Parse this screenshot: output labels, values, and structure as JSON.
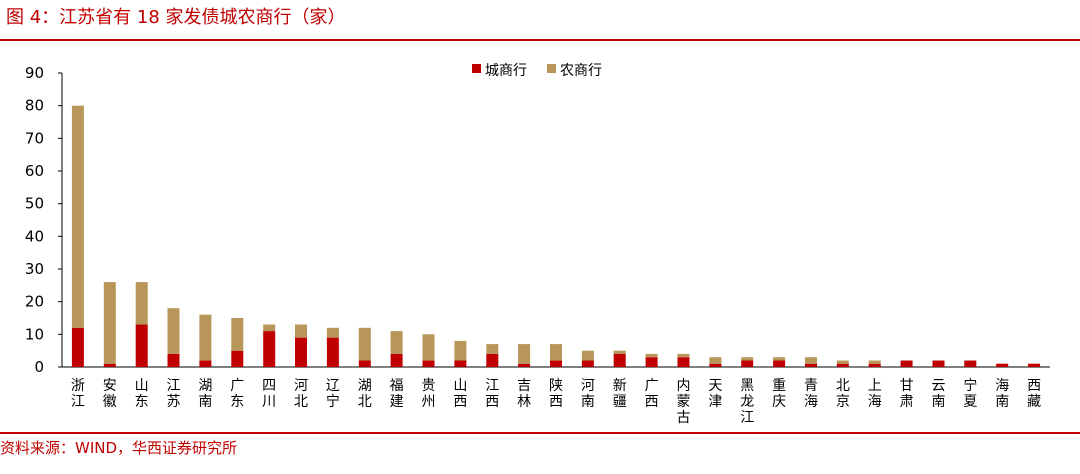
{
  "header": {
    "title": "图 4：江苏省有 18 家发债城农商行（家）"
  },
  "footer": {
    "source": "资料来源：WIND，华西证券研究所"
  },
  "colors": {
    "city_bank": "#c00000",
    "rural_bank": "#b8965a",
    "accent": "#c00000"
  },
  "chart_data": {
    "type": "bar",
    "stacked": true,
    "categories": [
      "浙江",
      "安徽",
      "山东",
      "江苏",
      "湖南",
      "广东",
      "四川",
      "河北",
      "辽宁",
      "湖北",
      "福建",
      "贵州",
      "山西",
      "江西",
      "吉林",
      "陕西",
      "河南",
      "新疆",
      "广西",
      "内蒙古",
      "天津",
      "黑龙江",
      "重庆",
      "青海",
      "北京",
      "上海",
      "甘肃",
      "云南",
      "宁夏",
      "海南",
      "西藏"
    ],
    "series": [
      {
        "name": "城商行",
        "values": [
          12,
          1,
          13,
          4,
          2,
          5,
          11,
          9,
          9,
          2,
          4,
          2,
          2,
          4,
          1,
          2,
          2,
          4,
          3,
          3,
          1,
          2,
          2,
          1,
          1,
          1,
          2,
          2,
          2,
          1,
          1
        ]
      },
      {
        "name": "农商行",
        "values": [
          68,
          25,
          13,
          14,
          14,
          10,
          2,
          4,
          3,
          10,
          7,
          8,
          6,
          3,
          6,
          5,
          3,
          1,
          1,
          1,
          2,
          1,
          1,
          2,
          1,
          1,
          0,
          0,
          0,
          0,
          0
        ]
      }
    ],
    "yticks": [
      "0",
      "10",
      "20",
      "30",
      "40",
      "50",
      "60",
      "70",
      "80",
      "90"
    ],
    "ylim": [
      0,
      90
    ],
    "grid": false,
    "legend_position": "top-center"
  }
}
